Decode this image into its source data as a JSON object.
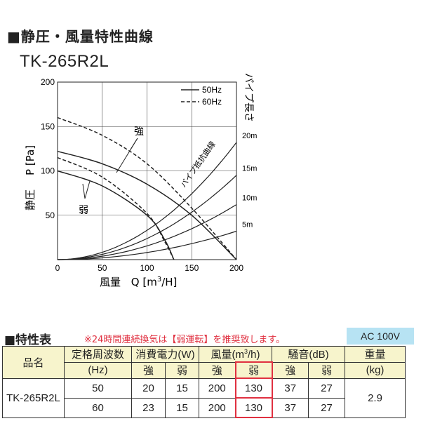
{
  "header": {
    "title": "■静圧・風量特性曲線",
    "model": "TK-265R2L"
  },
  "chart_data": {
    "type": "line",
    "xlabel": "風量　Q [m3/H]",
    "xlabel_a": "風量",
    "xlabel_b": "Q [m",
    "xlabel_sup": "3",
    "xlabel_c": "/H]",
    "ylabel": "静圧　P [Pa]",
    "ylabel_a": "静圧",
    "ylabel_b": "P [Pa]",
    "xlim": [
      0,
      200
    ],
    "ylim": [
      0,
      200
    ],
    "xticks": [
      "0",
      "50",
      "100",
      "150",
      "200"
    ],
    "yticks": [
      "50",
      "100",
      "150",
      "200"
    ],
    "legend": [
      {
        "label": "50Hz",
        "style": "solid"
      },
      {
        "label": "60Hz",
        "style": "dashed"
      }
    ],
    "series": [
      {
        "name": "強 50Hz",
        "style": "solid",
        "points": [
          [
            0,
            122
          ],
          [
            50,
            108
          ],
          [
            100,
            85
          ],
          [
            150,
            50
          ],
          [
            200,
            0
          ]
        ]
      },
      {
        "name": "弱 50Hz",
        "style": "solid",
        "points": [
          [
            0,
            100
          ],
          [
            50,
            83
          ],
          [
            100,
            50
          ],
          [
            120,
            22
          ],
          [
            130,
            0
          ]
        ]
      },
      {
        "name": "強 60Hz",
        "style": "dashed",
        "points": [
          [
            0,
            160
          ],
          [
            50,
            140
          ],
          [
            100,
            108
          ],
          [
            150,
            58
          ],
          [
            200,
            0
          ]
        ]
      },
      {
        "name": "弱 60Hz",
        "style": "dashed",
        "points": [
          [
            0,
            115
          ],
          [
            50,
            93
          ],
          [
            100,
            52
          ],
          [
            120,
            20
          ],
          [
            130,
            0
          ]
        ]
      }
    ],
    "pipe_curves": [
      {
        "label": "5m",
        "end_y": 32
      },
      {
        "label": "10m",
        "end_y": 62
      },
      {
        "label": "15m",
        "end_y": 95
      },
      {
        "label": "20m",
        "end_y": 132
      }
    ],
    "pipe_axis_label": "パイプ長さ",
    "pipe_curve_label": "パイプ抵抗曲線",
    "annotations": [
      "強",
      "弱"
    ],
    "colors": {
      "line": "#222222"
    }
  },
  "spec": {
    "title": "■特性表",
    "note": "※24時間連続換気は【弱運転】を推奨致します。",
    "power": "AC 100V",
    "headers": {
      "name": "品名",
      "freq": "定格周波数",
      "freq_unit": "(Hz)",
      "power": "消費電力(W)",
      "airflow": "風量(m3/h)",
      "noise": "騒音(dB)",
      "weight": "重量",
      "weight_unit": "(kg)",
      "strong": "強",
      "weak": "弱"
    },
    "product": "TK-265R2L",
    "weight": "2.9",
    "rows": [
      {
        "freq": "50",
        "power_strong": "20",
        "power_weak": "15",
        "air_strong": "200",
        "air_weak": "130",
        "noise_strong": "37",
        "noise_weak": "27"
      },
      {
        "freq": "60",
        "power_strong": "23",
        "power_weak": "15",
        "air_strong": "200",
        "air_weak": "130",
        "noise_strong": "37",
        "noise_weak": "27"
      }
    ]
  }
}
